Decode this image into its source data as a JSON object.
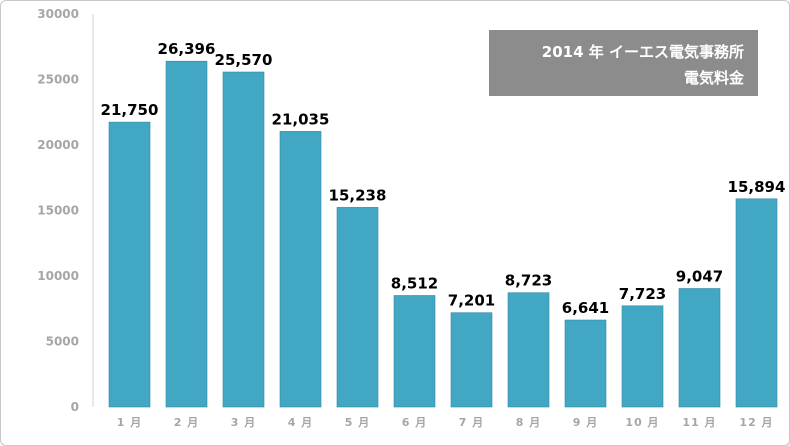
{
  "title_lines": [
    "2014 年 イーエス電気事務所",
    "電気料金"
  ],
  "colors": {
    "bar": "#42a7c3",
    "bar_edge": "#2f8aa5",
    "title_box": "#8c8c8c",
    "axis_text": "#a6a6a6",
    "axis_line": "#d0d0d0",
    "label_text": "#000000"
  },
  "chart_data": {
    "type": "bar",
    "title": "2014 年 イーエス電気事務所 電気料金",
    "xlabel": "",
    "ylabel": "",
    "categories": [
      "1 月",
      "2 月",
      "3 月",
      "4 月",
      "5 月",
      "6 月",
      "7 月",
      "8 月",
      "9 月",
      "10 月",
      "11 月",
      "12 月"
    ],
    "values": [
      21750,
      26396,
      25570,
      21035,
      15238,
      8512,
      7201,
      8723,
      6641,
      7723,
      9047,
      15894
    ],
    "data_labels": [
      "21,750",
      "26,396",
      "25,570",
      "21,035",
      "15,238",
      "8,512",
      "7,201",
      "8,723",
      "6,641",
      "7,723",
      "9,047",
      "15,894"
    ],
    "ylim": [
      0,
      30000
    ],
    "yticks": [
      "0",
      "5000",
      "10000",
      "15000",
      "20000",
      "25000",
      "30000"
    ],
    "grid": false,
    "legend": "none"
  }
}
